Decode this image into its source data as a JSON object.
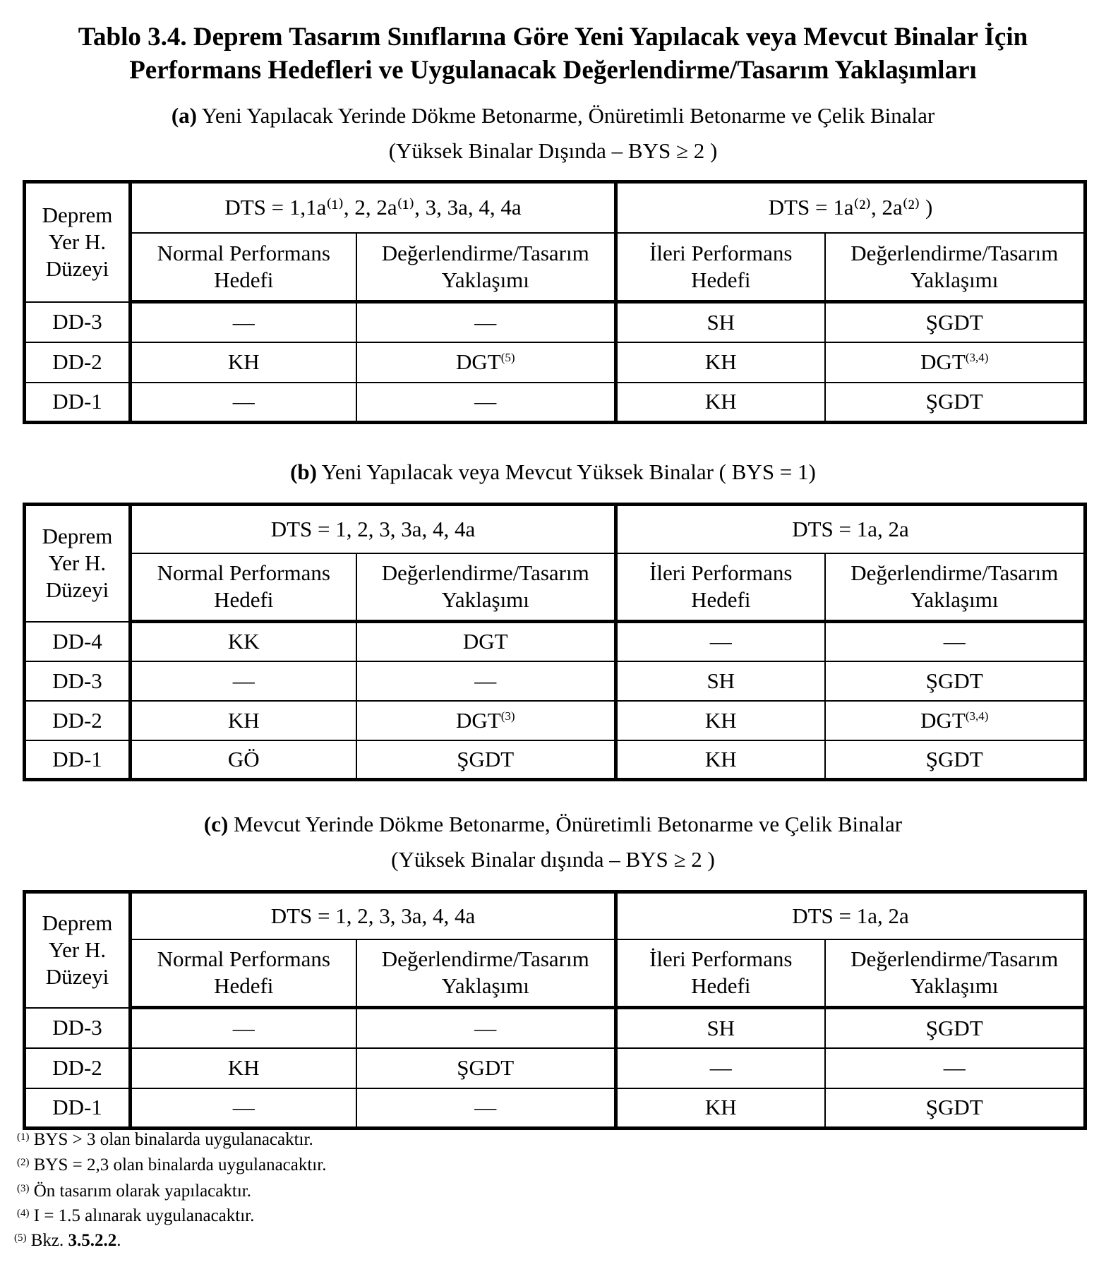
{
  "title": {
    "line1": "Tablo 3.4. Deprem Tasarım Sınıflarına Göre Yeni Yapılacak veya Mevcut Binalar İçin",
    "line2": "Performans Hedefleri ve Uygulanacak Değerlendirme/Tasarım Yaklaşımları"
  },
  "col_headers": {
    "first": [
      "Deprem",
      "Yer H.",
      "Düzeyi"
    ],
    "normal": [
      "Normal Performans",
      "Hedefi"
    ],
    "approach": [
      "Değerlendirme/Tasarım",
      "Yaklaşımı"
    ],
    "advanced": [
      "İleri Performans",
      "Hedefi"
    ]
  },
  "tables": [
    {
      "label": "(a)",
      "caption": "Yeni Yapılacak Yerinde Dökme Betonarme, Önüretimli Betonarme ve Çelik Binalar",
      "caption2": "(Yüksek Binalar Dışında –  BYS ≥ 2 )",
      "group1": "DTS = 1,1a⁽¹⁾, 2, 2a⁽¹⁾, 3, 3a, 4, 4a",
      "group2": "DTS = 1a⁽²⁾, 2a⁽²⁾ )",
      "rows": [
        {
          "level": "DD-3",
          "cells": [
            {
              "t": "—",
              "s": ""
            },
            {
              "t": "—",
              "s": ""
            },
            {
              "t": "SH",
              "s": ""
            },
            {
              "t": "ŞGDT",
              "s": ""
            }
          ]
        },
        {
          "level": "DD-2",
          "cells": [
            {
              "t": "KH",
              "s": ""
            },
            {
              "t": "DGT",
              "s": "(5)"
            },
            {
              "t": "KH",
              "s": ""
            },
            {
              "t": "DGT",
              "s": "(3,4)"
            }
          ]
        },
        {
          "level": "DD-1",
          "cells": [
            {
              "t": "—",
              "s": ""
            },
            {
              "t": "—",
              "s": ""
            },
            {
              "t": "KH",
              "s": ""
            },
            {
              "t": "ŞGDT",
              "s": ""
            }
          ]
        }
      ]
    },
    {
      "label": "(b)",
      "caption": "Yeni Yapılacak veya Mevcut Yüksek Binalar ( BYS = 1)",
      "caption2": "",
      "group1": "DTS = 1, 2, 3, 3a, 4, 4a",
      "group2": "DTS = 1a, 2a",
      "rows": [
        {
          "level": "DD-4",
          "cells": [
            {
              "t": "KK",
              "s": ""
            },
            {
              "t": "DGT",
              "s": ""
            },
            {
              "t": "—",
              "s": ""
            },
            {
              "t": "—",
              "s": ""
            }
          ]
        },
        {
          "level": "DD-3",
          "cells": [
            {
              "t": "—",
              "s": ""
            },
            {
              "t": "—",
              "s": ""
            },
            {
              "t": "SH",
              "s": ""
            },
            {
              "t": "ŞGDT",
              "s": ""
            }
          ]
        },
        {
          "level": "DD-2",
          "cells": [
            {
              "t": "KH",
              "s": ""
            },
            {
              "t": "DGT",
              "s": "(3)"
            },
            {
              "t": "KH",
              "s": ""
            },
            {
              "t": "DGT",
              "s": "(3,4)"
            }
          ]
        },
        {
          "level": "DD-1",
          "cells": [
            {
              "t": "GÖ",
              "s": ""
            },
            {
              "t": "ŞGDT",
              "s": ""
            },
            {
              "t": "KH",
              "s": ""
            },
            {
              "t": "ŞGDT",
              "s": ""
            }
          ]
        }
      ]
    },
    {
      "label": "(c)",
      "caption": "Mevcut Yerinde Dökme Betonarme, Önüretimli Betonarme ve Çelik Binalar",
      "caption2": "(Yüksek Binalar dışında –  BYS ≥ 2 )",
      "group1": "DTS = 1, 2, 3, 3a, 4, 4a",
      "group2": "DTS = 1a, 2a",
      "rows": [
        {
          "level": "DD-3",
          "cells": [
            {
              "t": "—",
              "s": ""
            },
            {
              "t": "—",
              "s": ""
            },
            {
              "t": "SH",
              "s": ""
            },
            {
              "t": "ŞGDT",
              "s": ""
            }
          ]
        },
        {
          "level": "DD-2",
          "cells": [
            {
              "t": "KH",
              "s": ""
            },
            {
              "t": "ŞGDT",
              "s": ""
            },
            {
              "t": "—",
              "s": ""
            },
            {
              "t": "—",
              "s": ""
            }
          ]
        },
        {
          "level": "DD-1",
          "cells": [
            {
              "t": "—",
              "s": ""
            },
            {
              "t": "—",
              "s": ""
            },
            {
              "t": "KH",
              "s": ""
            },
            {
              "t": "ŞGDT",
              "s": ""
            }
          ]
        }
      ]
    }
  ],
  "footnotes": [
    {
      "mark": "(1)",
      "text": "BYS > 3  olan binalarda uygulanacaktır."
    },
    {
      "mark": "(2)",
      "text": "BYS = 2,3  olan binalarda uygulanacaktır."
    },
    {
      "mark": "(3)",
      "text": "Ön tasarım olarak yapılacaktır."
    },
    {
      "mark": "(4)",
      "text": "I = 1.5  alınarak uygulanacaktır."
    },
    {
      "mark": "(5)",
      "text": "Bkz. ",
      "bold": "3.5.2.2",
      "end": "."
    }
  ]
}
